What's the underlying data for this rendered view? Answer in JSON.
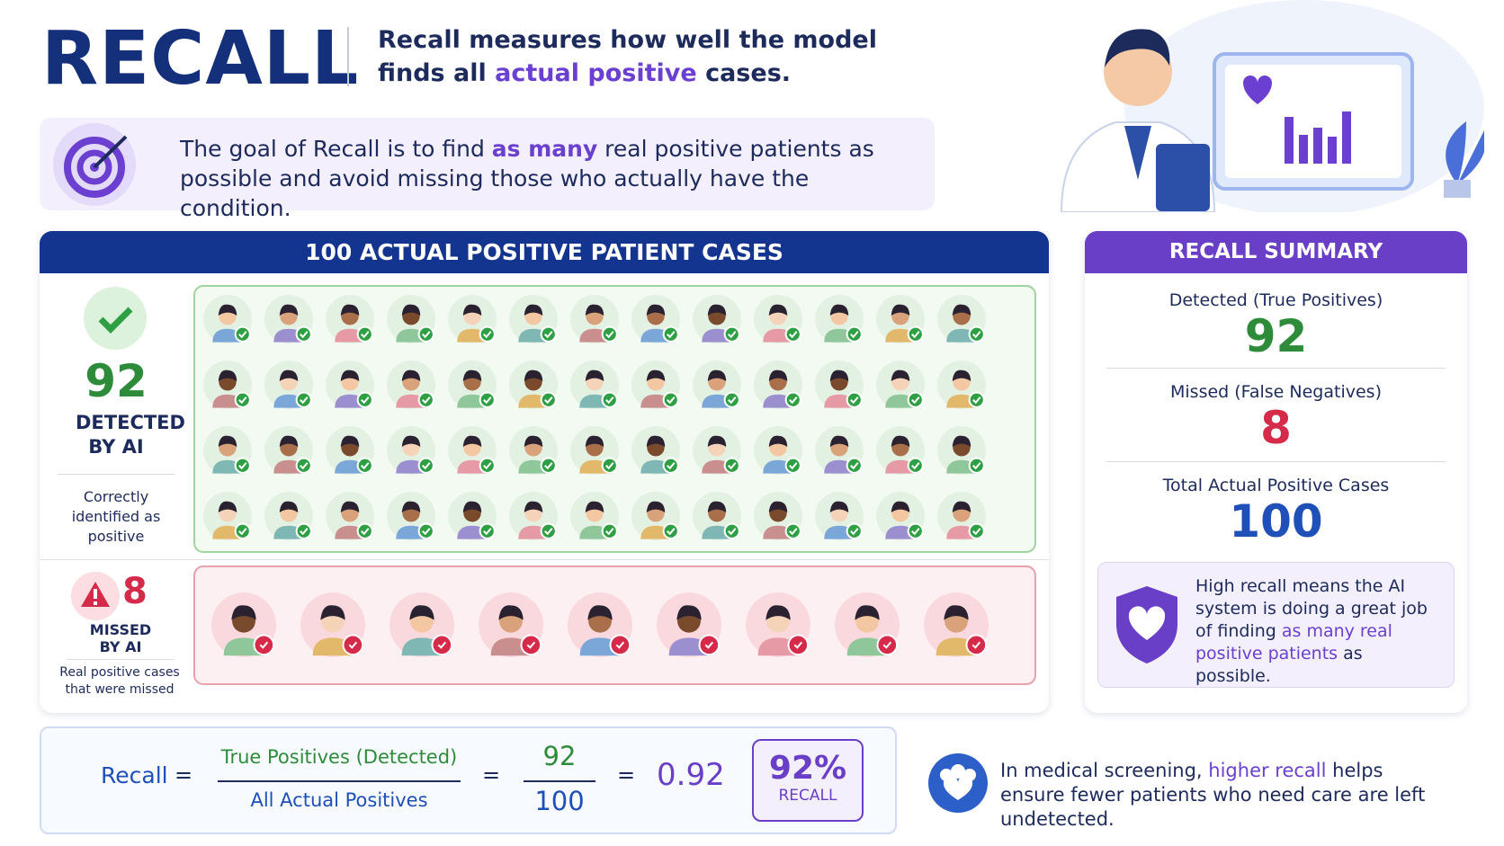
{
  "header": {
    "title": "RECALL",
    "description": {
      "before": "Recall measures how well the model finds all ",
      "highlight": "actual positive",
      "after": " cases."
    }
  },
  "goal": {
    "before": "The goal of Recall  is to find ",
    "highlight": "as many",
    "after": " real positive patients as possible and avoid missing those who actually have the condition."
  },
  "cases_panel": {
    "title": "100 ACTUAL POSITIVE PATIENT CASES",
    "detected": {
      "count": 92,
      "label": "DETECTED BY AI",
      "note": "Correctly identified as positive"
    },
    "missed": {
      "count": 8,
      "label": "MISSED BY AI",
      "note": "Real positive cases that were missed"
    }
  },
  "summary": {
    "title": "RECALL SUMMARY",
    "items": [
      {
        "label": "Detected (True Positives)",
        "value": 92
      },
      {
        "label": "Missed (False Negatives)",
        "value": 8
      },
      {
        "label": "Total Actual Positive Cases",
        "value": 100
      }
    ],
    "note": {
      "before": "High recall means the AI system is doing a great job of finding ",
      "highlight": "as many real positive patients",
      "after": " as possible."
    }
  },
  "formula": {
    "name": "Recall",
    "equals": "=",
    "numerator_label": "True Positives (Detected)",
    "denominator_label": "All Actual Positives",
    "numerator": 92,
    "denominator": 100,
    "result": 0.92,
    "badge_value": "92%",
    "badge_label": "RECALL"
  },
  "footer": {
    "before": "In medical screening, ",
    "highlight": "higher recall",
    "after": " helps ensure fewer patients who need care are left undetected."
  }
}
